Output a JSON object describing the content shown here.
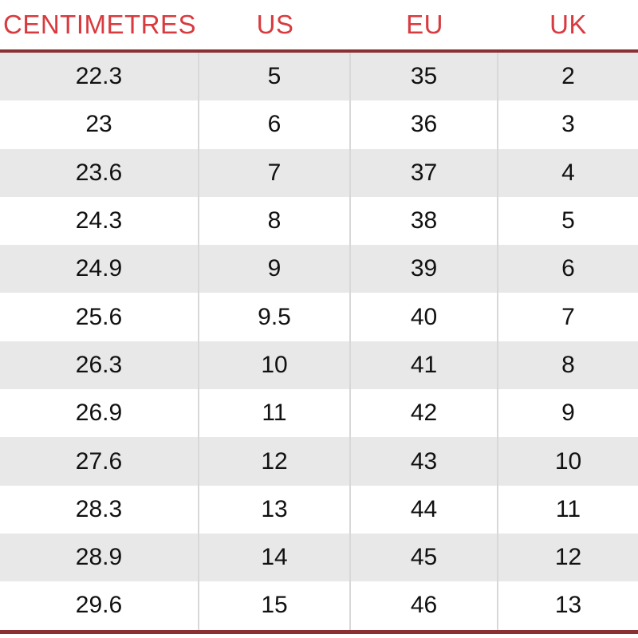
{
  "chart_data": {
    "type": "table",
    "columns": [
      "CENTIMETRES",
      "US",
      "EU",
      "UK"
    ],
    "rows": [
      [
        "22.3",
        "5",
        "35",
        "2"
      ],
      [
        "23",
        "6",
        "36",
        "3"
      ],
      [
        "23.6",
        "7",
        "37",
        "4"
      ],
      [
        "24.3",
        "8",
        "38",
        "5"
      ],
      [
        "24.9",
        "9",
        "39",
        "6"
      ],
      [
        "25.6",
        "9.5",
        "40",
        "7"
      ],
      [
        "26.3",
        "10",
        "41",
        "8"
      ],
      [
        "26.9",
        "11",
        "42",
        "9"
      ],
      [
        "27.6",
        "12",
        "43",
        "10"
      ],
      [
        "28.3",
        "13",
        "44",
        "11"
      ],
      [
        "28.9",
        "14",
        "45",
        "12"
      ],
      [
        "29.6",
        "15",
        "46",
        "13"
      ]
    ],
    "layout": {
      "striped": true,
      "first_data_row_shaded": true,
      "header_position": "top"
    }
  },
  "colors": {
    "header_text": "#d93a3e",
    "accent_line": "#8a3033",
    "alt_row_bg": "#e8e8e8",
    "row_bg": "#ffffff",
    "body_text": "#111111",
    "column_divider": "#d8d8d8"
  }
}
